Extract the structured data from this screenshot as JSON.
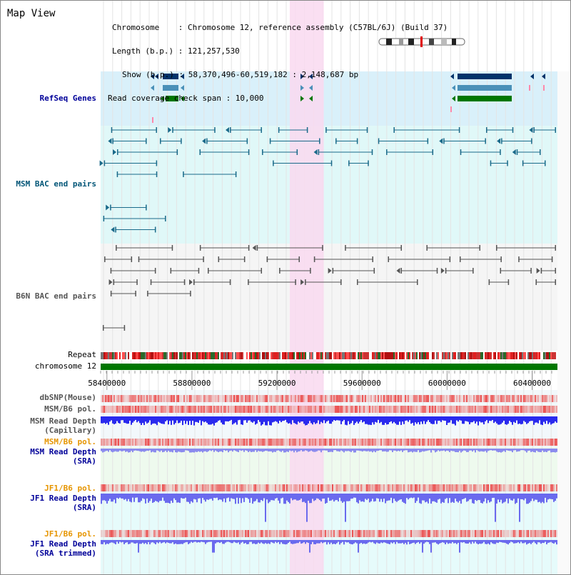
{
  "title": "Map View",
  "info": {
    "chromosome": "Chromosome    : Chromosome 12, reference assembly (C57BL/6J) (Build 37)",
    "length": "Length (b.p.) : 121,257,530",
    "show": "Show (b.p.) : 58,370,496-60,519,182 : 2,148,687 bp",
    "coverage": "Read coverage check span : 10,000"
  },
  "tracks": {
    "refseq": "RefSeq Genes",
    "msm_bac": "MSM BAC end pairs",
    "b6n_bac": "B6N BAC end pairs",
    "repeat": "Repeat",
    "chromosome": "chromosome 12",
    "dbsnp": "dbSNP(Mouse)",
    "msm_b6_pol_1": "MSM/B6 pol.",
    "msm_read_depth_cap_1": "MSM Read Depth",
    "msm_read_depth_cap_2": "(Capillary)",
    "msm_b6_pol_2": "MSM/B6 pol.",
    "msm_read_depth_sra_1": "MSM Read Depth",
    "msm_read_depth_sra_2": "(SRA)",
    "jf1_b6_pol_1": "JF1/B6 pol.",
    "jf1_read_depth_sra_1": "JF1 Read Depth",
    "jf1_read_depth_sra_2": "(SRA)",
    "jf1_b6_pol_2": "JF1/B6 pol.",
    "jf1_read_depth_trim_1": "JF1 Read Depth",
    "jf1_read_depth_trim_2": "(SRA trimmed)"
  },
  "axis": {
    "ticks": [
      "58400000",
      "58800000",
      "59200000",
      "59600000",
      "60000000",
      "60400000"
    ],
    "tick_values": [
      58400000,
      58800000,
      59200000,
      59600000,
      60000000,
      60400000
    ],
    "range": [
      58370496,
      60519182
    ]
  },
  "highlight": {
    "start": 59260000,
    "end": 59420000
  },
  "colors": {
    "refseq_bg": "#d9f0fa",
    "bac_bg": "#e0f8f8",
    "b6n_bg": "#f5f5f5",
    "highlight": "#f9d9f0",
    "chrom_bar": "#007700",
    "gene_dark": "#00336a",
    "gene_mid": "#4a90b8",
    "gene_green": "#007700",
    "msm_bac": "#1a6a8a",
    "b6n_bac": "#555555",
    "read_depth": "#3333ee",
    "pol": "#ee4444"
  }
}
